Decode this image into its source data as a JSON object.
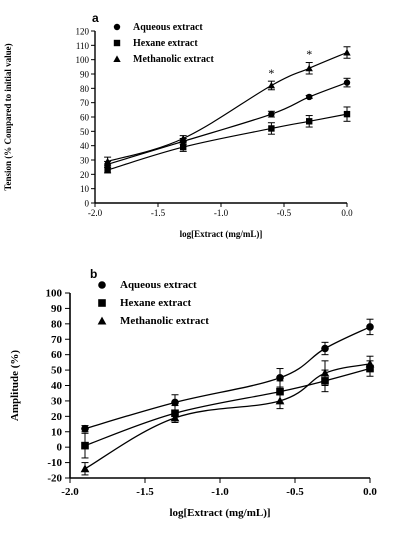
{
  "chart_data": [
    {
      "panel": "a",
      "type": "line",
      "xlabel": "log[Extract (mg/mL)]",
      "ylabel": "Tension (% Compared to initial value)",
      "xlim": [
        -2.0,
        0.0
      ],
      "ylim": [
        0,
        120
      ],
      "xticks": [
        "-2.0",
        "-1.5",
        "-1.0",
        "-0.5",
        "0.0"
      ],
      "yticks": [
        "0",
        "10",
        "20",
        "30",
        "40",
        "50",
        "60",
        "70",
        "80",
        "90",
        "100",
        "110",
        "120"
      ],
      "x": [
        -1.9,
        -1.3,
        -0.6,
        -0.3,
        0.0
      ],
      "legend_position": "top-left",
      "series": [
        {
          "name": "Aqueous extract",
          "marker": "circle",
          "values": [
            27,
            43,
            62,
            74,
            84
          ],
          "errors": [
            2,
            2,
            2,
            1,
            3
          ]
        },
        {
          "name": "Hexane extract",
          "marker": "square",
          "values": [
            23,
            39,
            52,
            57,
            62
          ],
          "errors": [
            2,
            3,
            4,
            4,
            5
          ]
        },
        {
          "name": "Methanolic extract",
          "marker": "triangle",
          "values": [
            29,
            45,
            82,
            94,
            105
          ],
          "errors": [
            3,
            2,
            3,
            4,
            4
          ]
        }
      ],
      "annotations": [
        {
          "text": "*",
          "x": -0.6,
          "y": 88
        },
        {
          "text": "*",
          "x": -0.3,
          "y": 101
        }
      ],
      "grid": false
    },
    {
      "panel": "b",
      "type": "line",
      "xlabel": "log[Extract (mg/mL)]",
      "ylabel": "Amplitude (%)",
      "xlim": [
        -2.0,
        0.0
      ],
      "ylim": [
        -20,
        100
      ],
      "xticks": [
        "-2.0",
        "-1.5",
        "-1.0",
        "-0.5",
        "0.0"
      ],
      "yticks": [
        "-20",
        "-10",
        "0",
        "10",
        "20",
        "30",
        "40",
        "50",
        "60",
        "70",
        "80",
        "90",
        "100"
      ],
      "x": [
        -1.9,
        -1.3,
        -0.6,
        -0.3,
        0.0
      ],
      "legend_position": "top-left",
      "series": [
        {
          "name": "Aqueous extract",
          "marker": "circle",
          "values": [
            12,
            29,
            45,
            64,
            78
          ],
          "errors": [
            2,
            5,
            6,
            4,
            5
          ]
        },
        {
          "name": "Hexane extract",
          "marker": "square",
          "values": [
            1,
            22,
            36,
            43,
            51
          ],
          "errors": [
            8,
            5,
            7,
            7,
            5
          ]
        },
        {
          "name": "Methanolic extract",
          "marker": "triangle",
          "values": [
            -14,
            19,
            30,
            48,
            54
          ],
          "errors": [
            4,
            3,
            5,
            8,
            5
          ]
        }
      ],
      "grid": false
    }
  ]
}
